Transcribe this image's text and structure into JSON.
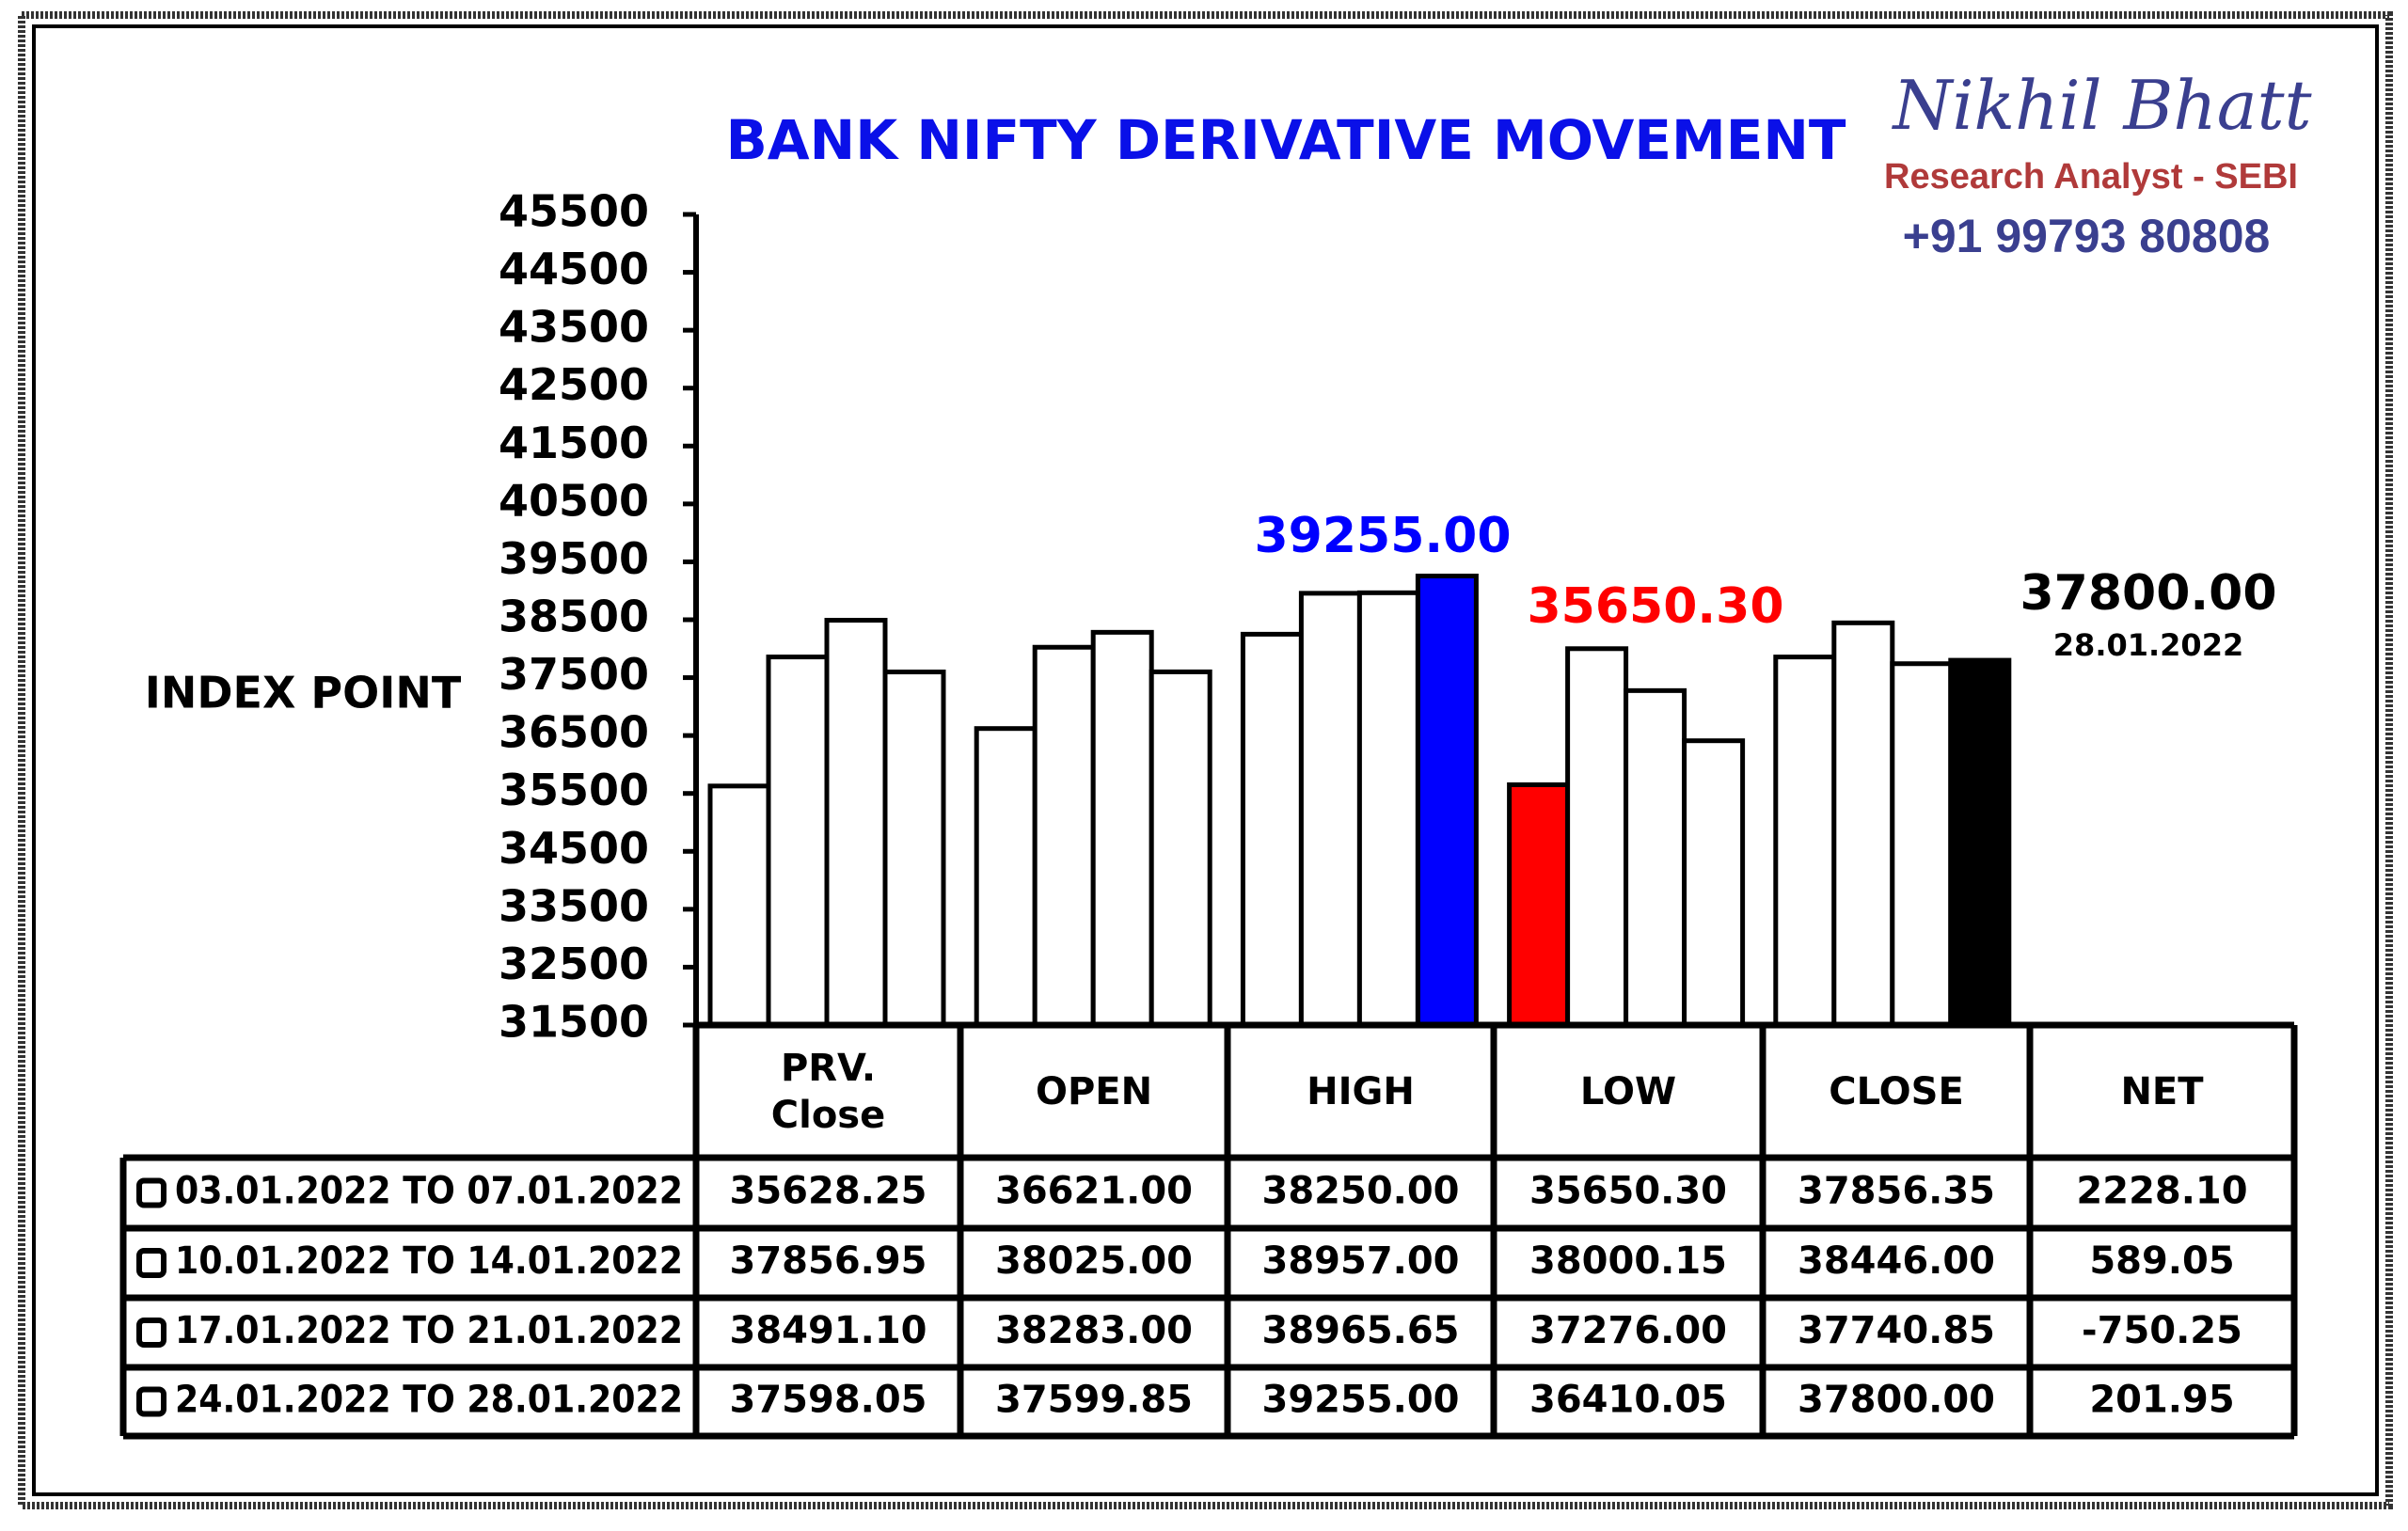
{
  "chart_data": {
    "type": "bar",
    "title": "BANK NIFTY DERIVATIVE MOVEMENT",
    "y_label": "INDEX POINT",
    "brand": {
      "name": "Nikhil Bhatt",
      "role": "Research Analyst - SEBI",
      "phone": "+91 99793 80808"
    },
    "categories": [
      "PRV. Close",
      "OPEN",
      "HIGH",
      "LOW",
      "CLOSE"
    ],
    "net_header": "NET",
    "ylim": [
      31500,
      45500
    ],
    "yticks": [
      31500,
      32500,
      33500,
      34500,
      35500,
      36500,
      37500,
      38500,
      39500,
      40500,
      41500,
      42500,
      43500,
      44500,
      45500
    ],
    "series": [
      {
        "name": "03.01.2022 TO 07.01.2022",
        "values": [
          35628.25,
          36621,
          38250,
          35650.3,
          37856.35
        ],
        "value_labels": [
          "35628.25",
          "36621.00",
          "38250.00",
          "35650.30",
          "37856.35"
        ],
        "net": "2228.10",
        "colors": [
          "#ffffff",
          "#ffffff",
          "#ffffff",
          "#ff0000",
          "#ffffff"
        ]
      },
      {
        "name": "10.01.2022 TO 14.01.2022",
        "values": [
          37856.95,
          38025,
          38957,
          38000.15,
          38446
        ],
        "value_labels": [
          "37856.95",
          "38025.00",
          "38957.00",
          "38000.15",
          "38446.00"
        ],
        "net": "589.05",
        "colors": [
          "#ffffff",
          "#ffffff",
          "#ffffff",
          "#ffffff",
          "#ffffff"
        ]
      },
      {
        "name": "17.01.2022 TO 21.01.2022",
        "values": [
          38491.1,
          38283,
          38965.65,
          37276,
          37740.85
        ],
        "value_labels": [
          "38491.10",
          "38283.00",
          "38965.65",
          "37276.00",
          "37740.85"
        ],
        "net": "-750.25",
        "colors": [
          "#ffffff",
          "#ffffff",
          "#ffffff",
          "#ffffff",
          "#ffffff"
        ]
      },
      {
        "name": "24.01.2022 TO 28.01.2022",
        "values": [
          37598.05,
          37599.85,
          39255,
          36410.05,
          37800
        ],
        "value_labels": [
          "37598.05",
          "37599.85",
          "39255.00",
          "36410.05",
          "37800.00"
        ],
        "net": "201.95",
        "colors": [
          "#ffffff",
          "#ffffff",
          "#0000ff",
          "#ffffff",
          "#000000"
        ]
      }
    ],
    "annotations": [
      {
        "text": "39255.00",
        "color": "#0000ff"
      },
      {
        "text": "35650.30",
        "color": "#ff0000"
      },
      {
        "text": "37800.00",
        "color": "#000000"
      },
      {
        "text": "28.01.2022",
        "color": "#000000"
      }
    ]
  }
}
